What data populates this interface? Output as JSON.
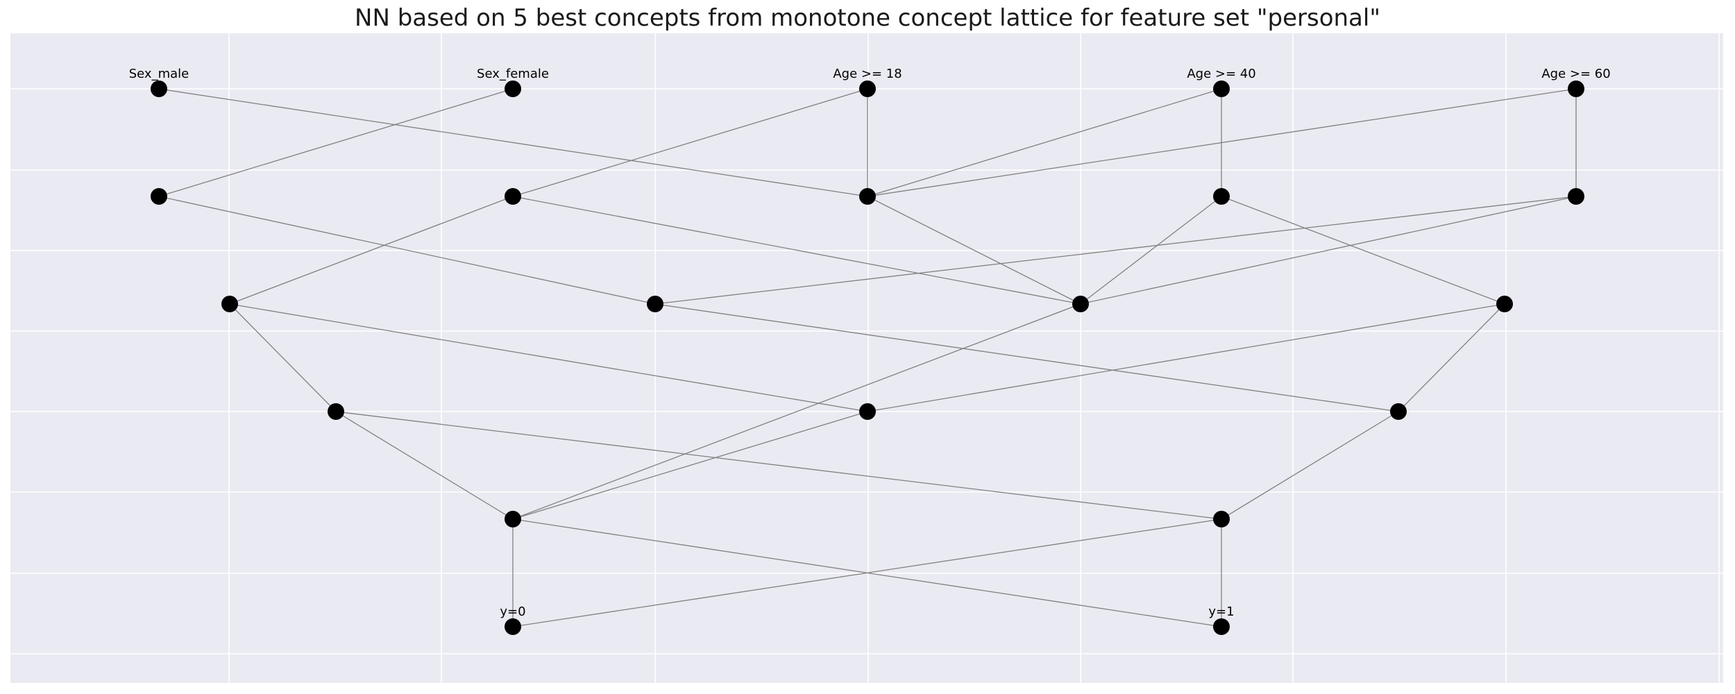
{
  "title": "NN based on 5 best concepts from monotone concept lattice for feature set \"personal\"",
  "colors": {
    "plot_background": "#eaeaf2",
    "grid": "#ffffff",
    "edge": "#808080",
    "node": "#000000"
  },
  "nodes": [
    {
      "id": "n0",
      "layer": 0,
      "pos": 0,
      "label": "Sex_male"
    },
    {
      "id": "n1",
      "layer": 0,
      "pos": 1,
      "label": "Sex_female"
    },
    {
      "id": "n2",
      "layer": 0,
      "pos": 2,
      "label": "Age >= 18"
    },
    {
      "id": "n3",
      "layer": 0,
      "pos": 3,
      "label": "Age >= 40"
    },
    {
      "id": "n4",
      "layer": 0,
      "pos": 4,
      "label": "Age >= 60"
    },
    {
      "id": "n5",
      "layer": 1,
      "pos": 0,
      "label": ""
    },
    {
      "id": "n6",
      "layer": 1,
      "pos": 1,
      "label": ""
    },
    {
      "id": "n7",
      "layer": 1,
      "pos": 2,
      "label": ""
    },
    {
      "id": "n8",
      "layer": 1,
      "pos": 3,
      "label": ""
    },
    {
      "id": "n9",
      "layer": 1,
      "pos": 4,
      "label": ""
    },
    {
      "id": "n10",
      "layer": 2,
      "pos": 0,
      "label": ""
    },
    {
      "id": "n11",
      "layer": 2,
      "pos": 1,
      "label": ""
    },
    {
      "id": "n12",
      "layer": 2,
      "pos": 2,
      "label": ""
    },
    {
      "id": "n13",
      "layer": 2,
      "pos": 3,
      "label": ""
    },
    {
      "id": "n14",
      "layer": 3,
      "pos": 0,
      "label": ""
    },
    {
      "id": "n15",
      "layer": 3,
      "pos": 1,
      "label": ""
    },
    {
      "id": "n16",
      "layer": 3,
      "pos": 2,
      "label": ""
    },
    {
      "id": "n17",
      "layer": 4,
      "pos": 0,
      "label": ""
    },
    {
      "id": "n18",
      "layer": 4,
      "pos": 1,
      "label": ""
    },
    {
      "id": "n19",
      "layer": 5,
      "pos": 0,
      "label": "y=0"
    },
    {
      "id": "n20",
      "layer": 5,
      "pos": 1,
      "label": "y=1"
    }
  ],
  "edges": [
    [
      "n0",
      "n7"
    ],
    [
      "n1",
      "n5"
    ],
    [
      "n2",
      "n6"
    ],
    [
      "n2",
      "n7"
    ],
    [
      "n3",
      "n7"
    ],
    [
      "n3",
      "n8"
    ],
    [
      "n4",
      "n7"
    ],
    [
      "n4",
      "n9"
    ],
    [
      "n5",
      "n11"
    ],
    [
      "n6",
      "n10"
    ],
    [
      "n6",
      "n12"
    ],
    [
      "n7",
      "n12"
    ],
    [
      "n8",
      "n12"
    ],
    [
      "n8",
      "n13"
    ],
    [
      "n9",
      "n11"
    ],
    [
      "n9",
      "n12"
    ],
    [
      "n10",
      "n14"
    ],
    [
      "n10",
      "n15"
    ],
    [
      "n11",
      "n16"
    ],
    [
      "n12",
      "n17"
    ],
    [
      "n13",
      "n15"
    ],
    [
      "n13",
      "n16"
    ],
    [
      "n14",
      "n17"
    ],
    [
      "n14",
      "n18"
    ],
    [
      "n15",
      "n17"
    ],
    [
      "n16",
      "n18"
    ],
    [
      "n17",
      "n19"
    ],
    [
      "n17",
      "n20"
    ],
    [
      "n18",
      "n19"
    ],
    [
      "n18",
      "n20"
    ]
  ]
}
